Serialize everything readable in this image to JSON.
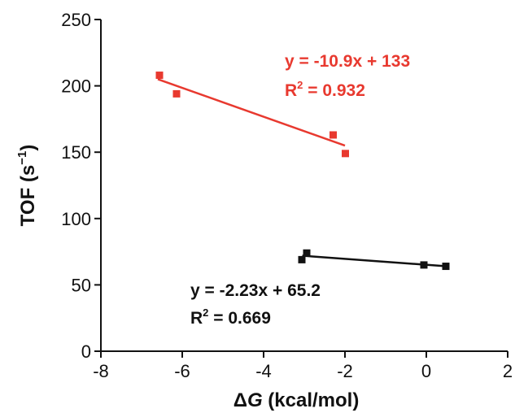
{
  "chart_data": {
    "type": "scatter",
    "xlabel": [
      "Δ",
      "G",
      " (kcal/mol)"
    ],
    "ylabel": [
      "TOF (s",
      "−1",
      ")"
    ],
    "xlim": [
      -8,
      2
    ],
    "xticks": [
      -8,
      -6,
      -4,
      -2,
      0,
      2
    ],
    "ylim": [
      0,
      250
    ],
    "yticks": [
      0,
      50,
      100,
      150,
      200,
      250
    ],
    "grid": false,
    "series": [
      {
        "color": "#e8392f",
        "x": [
          -6.56,
          -6.14,
          -2.29,
          -1.99
        ],
        "values": [
          208,
          194,
          163,
          149
        ],
        "fit": {
          "x": [
            -6.6,
            -2.0
          ],
          "values": [
            205,
            155
          ]
        },
        "equation": "y = -10.9x + 133",
        "r2": [
          "R",
          "2",
          " = 0.932"
        ]
      },
      {
        "color": "#111111",
        "x": [
          -3.06,
          -2.94,
          -0.06,
          0.48
        ],
        "values": [
          69,
          74,
          65,
          64
        ],
        "fit": {
          "x": [
            -3.05,
            0.5
          ],
          "values": [
            72,
            64
          ]
        },
        "equation": "y = -2.23x + 65.2",
        "r2": [
          "R",
          "2",
          " = 0.669"
        ]
      }
    ]
  }
}
